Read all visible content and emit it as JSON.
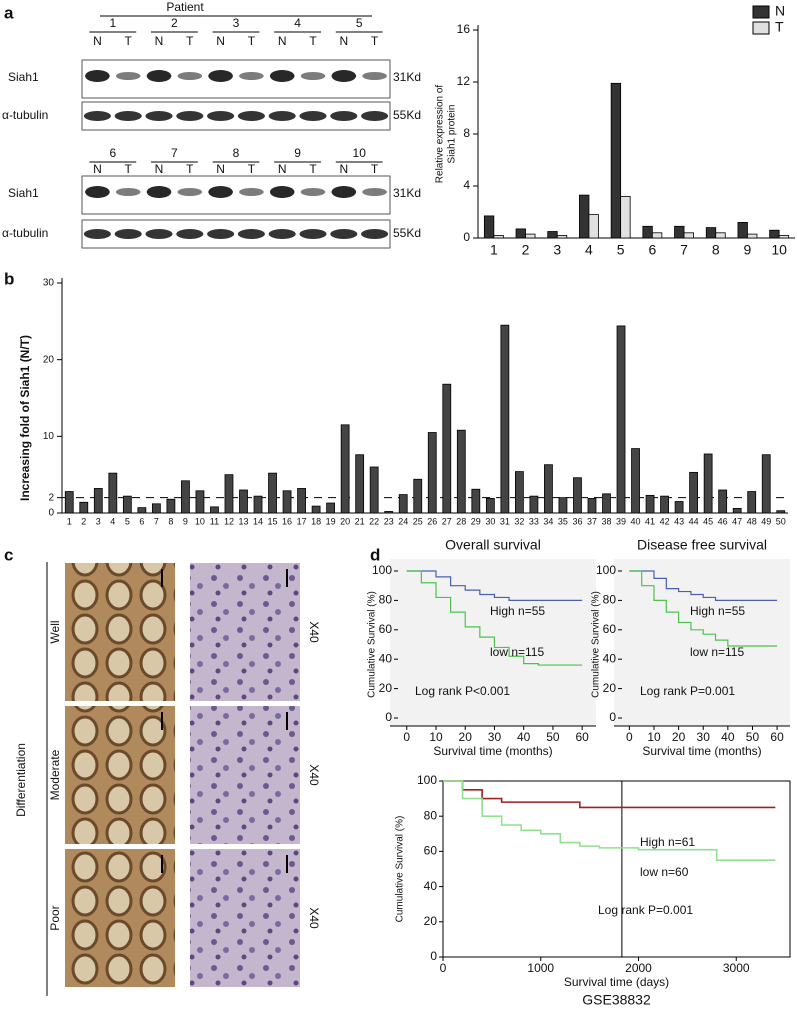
{
  "panel_labels": [
    "a",
    "b",
    "c",
    "d"
  ],
  "blot": {
    "header": "Patient",
    "patients": [
      "1",
      "2",
      "3",
      "4",
      "5",
      "6",
      "7",
      "8",
      "9",
      "10"
    ],
    "lanes": [
      "N",
      "T"
    ],
    "proteins": [
      "Siah1",
      "α-tubulin"
    ],
    "sizes": [
      "31Kd",
      "55Kd"
    ]
  },
  "histology": {
    "axis_label": "Differentiation",
    "grades": [
      "Well",
      "Moderate",
      "Poor"
    ],
    "magnification": "X40"
  },
  "chart_data": [
    {
      "type": "bar",
      "categories": [
        "1",
        "2",
        "3",
        "4",
        "5",
        "6",
        "7",
        "8",
        "9",
        "10"
      ],
      "series": [
        {
          "name": "N",
          "color": "#333333",
          "values": [
            1.7,
            0.7,
            0.5,
            3.3,
            11.9,
            0.9,
            0.9,
            0.8,
            1.2,
            0.6
          ]
        },
        {
          "name": "T",
          "color": "#e0e0e0",
          "values": [
            0.2,
            0.3,
            0.2,
            1.8,
            3.2,
            0.4,
            0.4,
            0.4,
            0.3,
            0.2
          ]
        }
      ],
      "ylabel": [
        "Relative expression of",
        "Siah1 protein"
      ],
      "ylim": [
        0,
        16
      ],
      "yticks": [
        0,
        4,
        8,
        12,
        16
      ],
      "legend": "top-right"
    },
    {
      "type": "bar",
      "categories": [
        "1",
        "2",
        "3",
        "4",
        "5",
        "6",
        "7",
        "8",
        "9",
        "10",
        "11",
        "12",
        "13",
        "14",
        "15",
        "16",
        "17",
        "18",
        "19",
        "20",
        "21",
        "22",
        "23",
        "24",
        "25",
        "26",
        "27",
        "28",
        "29",
        "30",
        "31",
        "32",
        "33",
        "34",
        "35",
        "36",
        "37",
        "38",
        "39",
        "40",
        "41",
        "42",
        "43",
        "44",
        "45",
        "46",
        "47",
        "48",
        "49",
        "50"
      ],
      "values": [
        2.8,
        1.4,
        3.2,
        5.2,
        2.2,
        0.7,
        1.2,
        1.8,
        4.2,
        2.9,
        0.8,
        5.0,
        3.0,
        2.2,
        5.2,
        2.9,
        3.2,
        0.9,
        1.3,
        11.5,
        7.6,
        6.0,
        0.2,
        2.4,
        4.4,
        10.5,
        16.8,
        10.8,
        3.1,
        1.9,
        24.5,
        5.4,
        2.2,
        6.3,
        2.0,
        4.6,
        1.9,
        2.5,
        24.4,
        8.4,
        2.3,
        2.2,
        1.5,
        5.3,
        7.7,
        3.0,
        0.6,
        2.8,
        7.6,
        0.3
      ],
      "color": "#444444",
      "ylabel": "Increasing fold of Siah1 (N/T)",
      "ylim": [
        0,
        30
      ],
      "yticks": [
        0,
        2,
        10,
        20,
        30
      ],
      "hline": 2
    },
    {
      "type": "line",
      "step": true,
      "title": "Overall survival",
      "x": [
        0,
        5,
        10,
        15,
        20,
        25,
        30,
        35,
        40,
        45,
        50,
        55,
        60
      ],
      "series": [
        {
          "name": "High n=55",
          "color": "#4a5fb0",
          "values": [
            100,
            100,
            96,
            90,
            87,
            84,
            82,
            80,
            80,
            80,
            80,
            80,
            80
          ]
        },
        {
          "name": "low n=115",
          "color": "#4cc24c",
          "values": [
            100,
            92,
            82,
            72,
            62,
            55,
            48,
            42,
            37,
            36,
            36,
            36,
            36
          ]
        }
      ],
      "annotation": "Log rank P<0.001",
      "xlabel": "Survival time (months)",
      "ylabel": "Cumulative Survival (%)",
      "xlim": [
        -3,
        62
      ],
      "xticks": [
        0,
        10,
        20,
        30,
        40,
        50,
        60
      ],
      "ylim": [
        0,
        100
      ],
      "yticks": [
        0,
        20,
        40,
        60,
        80,
        100
      ]
    },
    {
      "type": "line",
      "step": true,
      "title": "Disease free survival",
      "x": [
        0,
        5,
        10,
        15,
        20,
        25,
        30,
        35,
        40,
        45,
        50,
        55,
        60
      ],
      "series": [
        {
          "name": "High n=55",
          "color": "#4a5fb0",
          "values": [
            100,
            100,
            95,
            88,
            86,
            84,
            82,
            80,
            80,
            80,
            80,
            80,
            80
          ]
        },
        {
          "name": "low n=115",
          "color": "#4cc24c",
          "values": [
            100,
            90,
            80,
            72,
            65,
            60,
            57,
            53,
            49,
            49,
            49,
            49,
            49
          ]
        }
      ],
      "annotation": "Log rank P=0.001",
      "xlabel": "Survival time (months)",
      "ylabel": "Cumulative Survival (%)",
      "xlim": [
        -3,
        62
      ],
      "xticks": [
        0,
        10,
        20,
        30,
        40,
        50,
        60
      ],
      "ylim": [
        0,
        100
      ],
      "yticks": [
        0,
        20,
        40,
        60,
        80,
        100
      ]
    },
    {
      "type": "line",
      "step": true,
      "x": [
        0,
        200,
        400,
        600,
        800,
        1000,
        1200,
        1400,
        1600,
        1800,
        2000,
        2200,
        2400,
        2600,
        2800,
        3000,
        3200,
        3400
      ],
      "series": [
        {
          "name": "High n=61",
          "color": "#a02020",
          "values": [
            100,
            95,
            90,
            88,
            88,
            88,
            88,
            85,
            85,
            85,
            85,
            85,
            85,
            85,
            85,
            85,
            85,
            85
          ]
        },
        {
          "name": "low n=60",
          "color": "#90e090",
          "values": [
            100,
            90,
            80,
            75,
            72,
            70,
            65,
            63,
            62,
            62,
            61,
            61,
            61,
            61,
            55,
            55,
            55,
            55
          ]
        }
      ],
      "annotation": "Log rank P=0.001",
      "xlabel": "Survival time (days)",
      "caption": "GSE38832",
      "ylabel": "Cumulative Survival (%)",
      "vline": 1830,
      "xlim": [
        0,
        3550
      ],
      "xticks": [
        0,
        1000,
        2000,
        3000
      ],
      "ylim": [
        0,
        100
      ],
      "yticks": [
        0,
        20,
        40,
        60,
        80,
        100
      ]
    }
  ]
}
